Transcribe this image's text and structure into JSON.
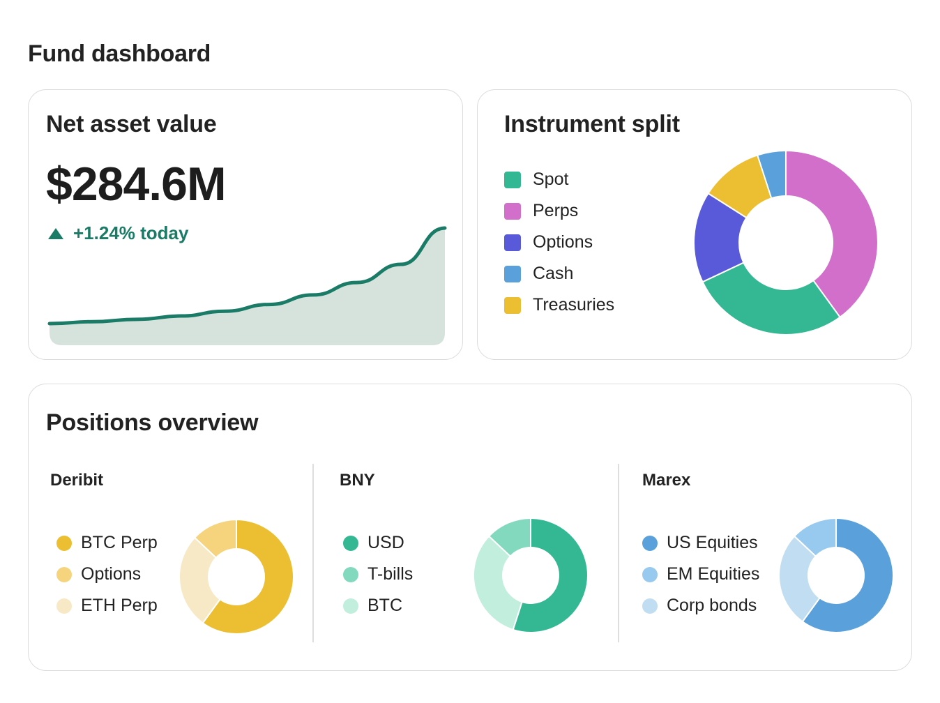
{
  "page": {
    "title": "Fund dashboard"
  },
  "nav_card": {
    "title": "Net asset value",
    "value": "$284.6M",
    "change": "+1.24% today",
    "colors": {
      "line": "#1a7b66",
      "fill": "#d6e3dd"
    },
    "trend": [
      0.0,
      0.02,
      0.045,
      0.08,
      0.13,
      0.2,
      0.3,
      0.43,
      0.62,
      1.0
    ]
  },
  "split_card": {
    "title": "Instrument split",
    "legend": [
      {
        "label": "Spot",
        "color": "#34b894"
      },
      {
        "label": "Perps",
        "color": "#d16fcb"
      },
      {
        "label": "Options",
        "color": "#585ad9"
      },
      {
        "label": "Cash",
        "color": "#5aa0db"
      },
      {
        "label": "Treasuries",
        "color": "#ecbe32"
      }
    ],
    "chart_data": {
      "type": "pie",
      "categories": [
        "Perps",
        "Spot",
        "Options",
        "Treasuries",
        "Cash"
      ],
      "values": [
        40,
        28,
        16,
        11,
        5
      ],
      "colors": [
        "#d16fcb",
        "#34b894",
        "#585ad9",
        "#ecbe32",
        "#5aa0db"
      ]
    }
  },
  "positions_card": {
    "title": "Positions overview",
    "venues": [
      {
        "name": "Deribit",
        "legend": [
          {
            "label": "BTC Perp",
            "color": "#ecbe32"
          },
          {
            "label": "Options",
            "color": "#f6d47e"
          },
          {
            "label": "ETH Perp",
            "color": "#f8e9c6"
          }
        ],
        "chart_data": {
          "type": "pie",
          "categories": [
            "BTC Perp",
            "ETH Perp",
            "Options"
          ],
          "values": [
            60,
            27,
            13
          ],
          "colors": [
            "#ecbe32",
            "#f8e9c6",
            "#f6d47e"
          ]
        }
      },
      {
        "name": "BNY",
        "legend": [
          {
            "label": "USD",
            "color": "#34b894"
          },
          {
            "label": "T-bills",
            "color": "#83d9bd"
          },
          {
            "label": "BTC",
            "color": "#c1eedd"
          }
        ],
        "chart_data": {
          "type": "pie",
          "categories": [
            "USD",
            "BTC",
            "T-bills"
          ],
          "values": [
            55,
            32,
            13
          ],
          "colors": [
            "#34b894",
            "#c1eedd",
            "#83d9bd"
          ]
        }
      },
      {
        "name": "Marex",
        "legend": [
          {
            "label": "US Equities",
            "color": "#5aa0db"
          },
          {
            "label": "EM Equities",
            "color": "#98c9ee"
          },
          {
            "label": "Corp bonds",
            "color": "#c1ddf1"
          }
        ],
        "chart_data": {
          "type": "pie",
          "categories": [
            "US Equities",
            "Corp bonds",
            "EM Equities"
          ],
          "values": [
            60,
            27,
            13
          ],
          "colors": [
            "#5aa0db",
            "#c1ddf1",
            "#98c9ee"
          ]
        }
      }
    ]
  }
}
